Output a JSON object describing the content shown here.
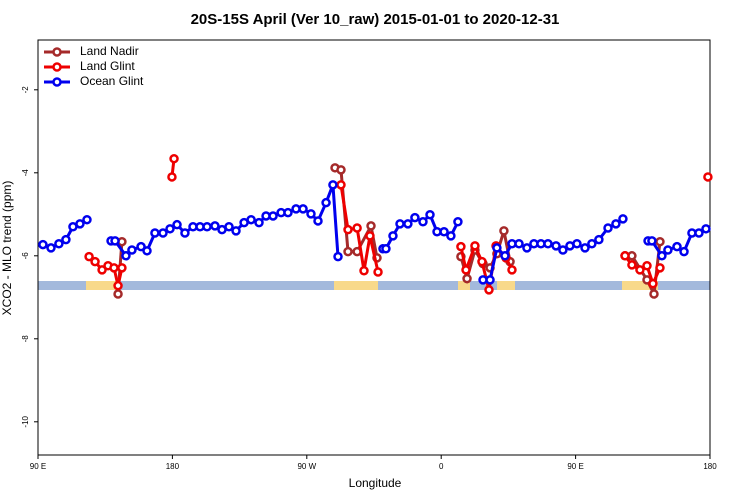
{
  "chart_data": {
    "type": "line",
    "title": "20S-15S April (Ver 10_raw)   2015-01-01 to 2020-12-31",
    "x_label": "Longitude",
    "y_label": "XCO2 - MLO trend (ppm)",
    "xlim": [
      90,
      540
    ],
    "ylim": [
      -10.8,
      -0.8
    ],
    "xticks": [
      {
        "value": 90,
        "label": "90 E"
      },
      {
        "value": 180,
        "label": "180"
      },
      {
        "value": 270,
        "label": "90 W"
      },
      {
        "value": 360,
        "label": "0"
      },
      {
        "value": 450,
        "label": "90 E"
      },
      {
        "value": 540,
        "label": "180"
      }
    ],
    "yticks": [
      -10,
      -8,
      -6,
      -4,
      -2
    ],
    "legend": "top-left",
    "series": [
      {
        "name": "Land Nadir",
        "color": "#a52a2a",
        "x": [
          143.6,
          146.2,
          null,
          288.9,
          292.9,
          297.6,
          303.7,
          313.0,
          317.0,
          null,
          373.2,
          377.3,
          382.6,
          388.0,
          392.7,
          397.3,
          402.0,
          406.1,
          null,
          483.1,
          487.7,
          497.8,
          502.5,
          506.5
        ],
        "values": [
          -6.92,
          -5.66,
          null,
          -3.88,
          -3.93,
          -5.9,
          -5.9,
          -5.28,
          -6.05,
          null,
          -6.02,
          -6.55,
          -5.86,
          -6.19,
          -6.29,
          -5.95,
          -5.4,
          -6.14,
          null,
          -6.0,
          -6.0,
          -6.58,
          -6.92,
          -5.66
        ]
      },
      {
        "name": "Land Glint",
        "color": "#ee0000",
        "x": [
          124.2,
          128.2,
          132.9,
          136.9,
          140.9,
          143.6,
          146.2,
          null,
          179.7,
          181.1,
          null,
          292.9,
          297.6,
          303.7,
          308.3,
          312.3,
          317.7,
          null,
          373.2,
          376.6,
          382.6,
          387.3,
          392.0,
          396.7,
          403.4,
          407.4,
          null,
          483.1,
          487.7,
          493.1,
          497.8,
          501.8,
          506.5,
          null,
          538.6
        ],
        "values": [
          -6.02,
          -6.14,
          -6.34,
          -6.24,
          -6.29,
          -6.72,
          -6.29,
          null,
          -4.1,
          -3.66,
          null,
          -4.29,
          -5.37,
          -5.33,
          -6.36,
          -5.52,
          -6.39,
          null,
          -5.78,
          -6.34,
          -5.76,
          -6.14,
          -6.82,
          -5.76,
          -6.05,
          -6.34,
          null,
          -6.0,
          -6.22,
          -6.34,
          -6.24,
          -6.67,
          -6.29,
          null,
          -4.1
        ]
      },
      {
        "name": "Ocean Glint",
        "color": "#0000ee",
        "x": [
          93.3,
          98.7,
          104.0,
          108.7,
          113.4,
          118.1,
          122.8,
          null,
          138.9,
          141.6,
          148.9,
          152.9,
          159.0,
          163.0,
          168.3,
          173.7,
          178.4,
          183.1,
          188.4,
          193.8,
          198.5,
          203.2,
          208.5,
          213.2,
          217.9,
          222.6,
          228.0,
          232.7,
          238.0,
          242.7,
          247.4,
          252.8,
          257.4,
          262.8,
          267.5,
          272.8,
          277.5,
          282.9,
          287.5,
          290.9,
          null,
          321.0,
          323.0,
          327.7,
          332.4,
          337.7,
          342.4,
          347.8,
          352.5,
          357.2,
          361.9,
          366.5,
          371.2,
          null,
          388.0,
          392.7,
          397.3,
          402.7,
          407.4,
          412.1,
          417.4,
          422.1,
          426.8,
          431.5,
          436.9,
          441.5,
          446.2,
          450.9,
          456.3,
          460.9,
          465.6,
          471.7,
          477.0,
          481.7,
          null,
          498.5,
          501.1,
          507.8,
          511.8,
          517.9,
          522.6,
          527.9,
          532.6,
          537.3
        ],
        "values": [
          -5.73,
          -5.81,
          -5.71,
          -5.61,
          -5.3,
          -5.23,
          -5.13,
          null,
          -5.64,
          -5.64,
          -6.0,
          -5.86,
          -5.78,
          -5.88,
          -5.45,
          -5.45,
          -5.35,
          -5.25,
          -5.45,
          -5.3,
          -5.3,
          -5.3,
          -5.28,
          -5.37,
          -5.3,
          -5.4,
          -5.2,
          -5.13,
          -5.2,
          -5.04,
          -5.04,
          -4.96,
          -4.96,
          -4.87,
          -4.87,
          -4.99,
          -5.16,
          -4.72,
          -4.29,
          -6.02,
          null,
          -5.83,
          -5.83,
          -5.52,
          -5.23,
          -5.23,
          -5.08,
          -5.18,
          -5.01,
          -5.42,
          -5.42,
          -5.52,
          -5.18,
          null,
          -6.58,
          -6.58,
          -5.81,
          -6.0,
          -5.71,
          -5.71,
          -5.81,
          -5.71,
          -5.71,
          -5.71,
          -5.76,
          -5.86,
          -5.76,
          -5.71,
          -5.81,
          -5.71,
          -5.61,
          -5.33,
          -5.23,
          -5.11,
          null,
          -5.64,
          -5.64,
          -6.0,
          -5.86,
          -5.78,
          -5.9,
          -5.45,
          -5.45,
          -5.35
        ]
      }
    ]
  }
}
